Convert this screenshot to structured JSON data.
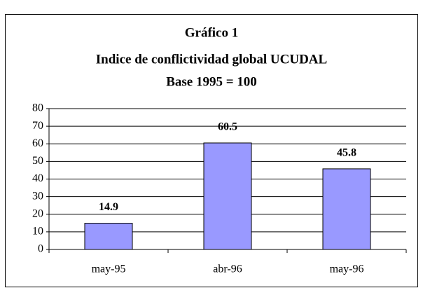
{
  "chart_data": {
    "type": "bar",
    "title": [
      "Gráfico 1",
      "Indice de conflictividad global UCUDAL",
      "Base 1995 = 100"
    ],
    "categories": [
      "may-95",
      "abr-96",
      "may-96"
    ],
    "values": [
      14.9,
      60.5,
      45.8
    ],
    "color": "#9999ff",
    "ylim": [
      0,
      80
    ],
    "yticks": [
      0,
      10,
      20,
      30,
      40,
      50,
      60,
      70,
      80
    ],
    "grid": true
  }
}
